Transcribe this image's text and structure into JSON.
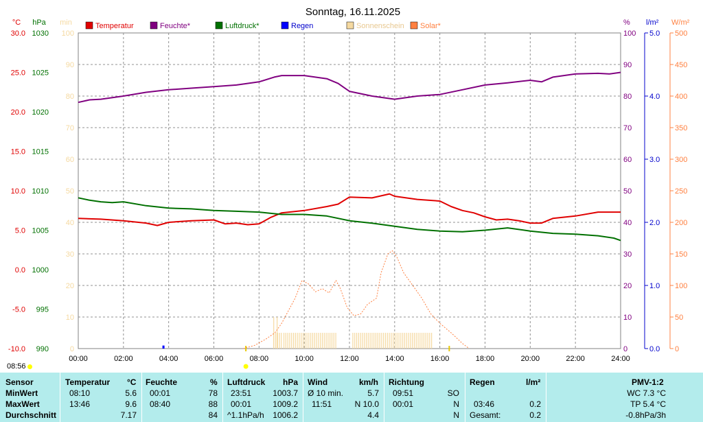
{
  "chart_data": {
    "type": "line",
    "title": "Sonntag, 16.11.2025",
    "x_range": [
      "00:00",
      "24:00"
    ],
    "x_ticks": [
      "00:00",
      "02:00",
      "04:00",
      "06:00",
      "08:00",
      "10:00",
      "12:00",
      "14:00",
      "16:00",
      "18:00",
      "20:00",
      "22:00",
      "24:00"
    ],
    "axes": {
      "temperature": {
        "unit": "°C",
        "range": [
          -10,
          30
        ],
        "ticks": [
          "30.0",
          "25.0",
          "20.0",
          "15.0",
          "10.0",
          "5.0",
          "0.0",
          "-5.0",
          "-10.0"
        ],
        "color": "#e00000"
      },
      "pressure": {
        "unit": "hPa",
        "range": [
          990,
          1030
        ],
        "ticks": [
          "1030",
          "1025",
          "1020",
          "1015",
          "1010",
          "1005",
          "1000",
          "995",
          "990"
        ],
        "color": "#007000"
      },
      "sunshine": {
        "unit": "min",
        "range": [
          0,
          100
        ],
        "ticks": [
          "100",
          "90",
          "80",
          "70",
          "60",
          "50",
          "40",
          "30",
          "20",
          "10",
          "0"
        ],
        "color": "#f5d9a0"
      },
      "humidity": {
        "unit": "%",
        "range": [
          0,
          100
        ],
        "ticks": [
          "100",
          "90",
          "80",
          "70",
          "60",
          "50",
          "40",
          "30",
          "20",
          "10",
          "0"
        ],
        "color": "#800080"
      },
      "rain": {
        "unit": "l/m²",
        "range": [
          0,
          5
        ],
        "ticks": [
          "5.0",
          "4.0",
          "3.0",
          "2.0",
          "1.0",
          "0.0"
        ],
        "color": "#0000cc"
      },
      "solar": {
        "unit": "W/m²",
        "range": [
          0,
          500
        ],
        "ticks": [
          "500",
          "450",
          "400",
          "350",
          "300",
          "250",
          "200",
          "150",
          "100",
          "50",
          "0"
        ],
        "color": "#ff8040"
      }
    },
    "legend": [
      {
        "name": "Temperatur",
        "color": "#e00000"
      },
      {
        "name": "Feuchte*",
        "color": "#800080"
      },
      {
        "name": "Luftdruck*",
        "color": "#007000"
      },
      {
        "name": "Regen",
        "color": "#0000ff"
      },
      {
        "name": "Sonnenschein",
        "color": "#f5d9a0"
      },
      {
        "name": "Solar*",
        "color": "#ff8040"
      }
    ],
    "series": [
      {
        "name": "Temperatur",
        "axis": "temperature",
        "color": "#e00000",
        "points": [
          [
            0,
            6.5
          ],
          [
            1,
            6.4
          ],
          [
            2,
            6.2
          ],
          [
            3,
            5.9
          ],
          [
            3.5,
            5.6
          ],
          [
            4,
            6.0
          ],
          [
            5,
            6.2
          ],
          [
            6,
            6.3
          ],
          [
            6.5,
            5.8
          ],
          [
            7,
            5.9
          ],
          [
            7.5,
            5.7
          ],
          [
            8,
            5.8
          ],
          [
            8.5,
            6.6
          ],
          [
            9,
            7.2
          ],
          [
            10,
            7.5
          ],
          [
            11,
            8.0
          ],
          [
            11.5,
            8.3
          ],
          [
            12,
            9.2
          ],
          [
            13,
            9.1
          ],
          [
            13.77,
            9.6
          ],
          [
            14,
            9.3
          ],
          [
            15,
            8.9
          ],
          [
            16,
            8.7
          ],
          [
            16.5,
            8.0
          ],
          [
            17,
            7.5
          ],
          [
            17.5,
            7.2
          ],
          [
            18,
            6.7
          ],
          [
            18.5,
            6.3
          ],
          [
            19,
            6.4
          ],
          [
            19.5,
            6.2
          ],
          [
            20,
            5.9
          ],
          [
            20.5,
            5.9
          ],
          [
            21,
            6.5
          ],
          [
            22,
            6.8
          ],
          [
            23,
            7.3
          ],
          [
            24,
            7.3
          ]
        ]
      },
      {
        "name": "Feuchte*",
        "axis": "humidity",
        "color": "#800080",
        "points": [
          [
            0,
            78
          ],
          [
            0.5,
            78.8
          ],
          [
            1,
            79
          ],
          [
            2,
            80
          ],
          [
            3,
            81.2
          ],
          [
            4,
            82
          ],
          [
            5,
            82.5
          ],
          [
            6,
            83
          ],
          [
            7,
            83.5
          ],
          [
            8,
            84.5
          ],
          [
            8.67,
            86
          ],
          [
            9,
            86.5
          ],
          [
            10,
            86.5
          ],
          [
            11,
            85.5
          ],
          [
            11.5,
            84
          ],
          [
            12,
            81.5
          ],
          [
            13,
            80
          ],
          [
            14,
            79
          ],
          [
            15,
            80
          ],
          [
            16,
            80.5
          ],
          [
            17,
            82
          ],
          [
            18,
            83.5
          ],
          [
            19,
            84.2
          ],
          [
            20,
            85
          ],
          [
            20.5,
            84.5
          ],
          [
            21,
            86
          ],
          [
            22,
            87
          ],
          [
            23,
            87.2
          ],
          [
            23.5,
            87
          ],
          [
            24,
            87.5
          ]
        ]
      },
      {
        "name": "Luftdruck*",
        "axis": "pressure",
        "color": "#007000",
        "points": [
          [
            0,
            1009.1
          ],
          [
            0.5,
            1008.8
          ],
          [
            1,
            1008.6
          ],
          [
            1.5,
            1008.5
          ],
          [
            2,
            1008.6
          ],
          [
            3,
            1008.1
          ],
          [
            4,
            1007.8
          ],
          [
            5,
            1007.7
          ],
          [
            6,
            1007.5
          ],
          [
            7,
            1007.4
          ],
          [
            8,
            1007.3
          ],
          [
            9,
            1007.0
          ],
          [
            10,
            1007.0
          ],
          [
            11,
            1006.8
          ],
          [
            12,
            1006.2
          ],
          [
            13,
            1005.9
          ],
          [
            14,
            1005.5
          ],
          [
            15,
            1005.1
          ],
          [
            16,
            1004.9
          ],
          [
            17,
            1004.8
          ],
          [
            18,
            1005.0
          ],
          [
            19,
            1005.3
          ],
          [
            20,
            1004.9
          ],
          [
            21,
            1004.6
          ],
          [
            22,
            1004.5
          ],
          [
            23,
            1004.3
          ],
          [
            23.7,
            1004.0
          ],
          [
            24,
            1003.7
          ]
        ]
      },
      {
        "name": "Solar*",
        "axis": "solar",
        "color": "#ff8040",
        "points": [
          [
            7.3,
            0
          ],
          [
            7.8,
            5
          ],
          [
            8.3,
            15
          ],
          [
            8.7,
            25
          ],
          [
            9,
            40
          ],
          [
            9.3,
            60
          ],
          [
            9.6,
            80
          ],
          [
            9.9,
            108
          ],
          [
            10.2,
            102
          ],
          [
            10.5,
            90
          ],
          [
            10.8,
            95
          ],
          [
            11.1,
            88
          ],
          [
            11.4,
            108
          ],
          [
            11.6,
            95
          ],
          [
            11.9,
            65
          ],
          [
            12.2,
            52
          ],
          [
            12.5,
            55
          ],
          [
            12.8,
            70
          ],
          [
            13.2,
            80
          ],
          [
            13.4,
            120
          ],
          [
            13.7,
            150
          ],
          [
            13.9,
            155
          ],
          [
            14.1,
            145
          ],
          [
            14.4,
            120
          ],
          [
            14.8,
            100
          ],
          [
            15.2,
            80
          ],
          [
            15.6,
            55
          ],
          [
            16,
            40
          ],
          [
            16.5,
            25
          ],
          [
            17,
            8
          ],
          [
            17.3,
            0
          ]
        ]
      }
    ],
    "sunshine_bars": {
      "axis": "sunshine",
      "color": "#f5d9a0",
      "intervals": [
        [
          8.65,
          9.0
        ],
        [
          9.1,
          11.45
        ],
        [
          12.15,
          15.7
        ]
      ],
      "value": 5,
      "spikes": [
        [
          8.65,
          10
        ],
        [
          8.8,
          10
        ]
      ]
    },
    "rain_bars": {
      "axis": "rain",
      "color": "#0000ff",
      "points": [
        [
          3.77,
          0.2
        ]
      ]
    },
    "sun_markers": [
      "07:25",
      "16:25"
    ]
  },
  "clock": "08:56",
  "stats": {
    "headers": {
      "sensor": "Sensor",
      "temp": "Temperatur",
      "temp_unit": "°C",
      "hum": "Feuchte",
      "hum_unit": "%",
      "press": "Luftdruck",
      "press_unit": "hPa",
      "wind": "Wind",
      "wind_unit": "km/h",
      "dir": "Richtung",
      "rain": "Regen",
      "rain_unit": "l/m²",
      "pmv": "PMV-1:2"
    },
    "rows": [
      {
        "label": "MinWert",
        "temp_time": "08:10",
        "temp_val": "5.6",
        "hum_time": "00:01",
        "hum_val": "78",
        "press_time": "23:51",
        "press_val": "1003.7",
        "wind_time": "Ø 10 min.",
        "wind_val": "5.7",
        "dir_time": "09:51",
        "dir_val": "SO",
        "rain_time": "",
        "rain_val": "",
        "pmv": "WC 7.3 °C"
      },
      {
        "label": "MaxWert",
        "temp_time": "13:46",
        "temp_val": "9.6",
        "hum_time": "08:40",
        "hum_val": "88",
        "press_time": "00:01",
        "press_val": "1009.2",
        "wind_time": "11:51",
        "wind_val": "N 10.0",
        "dir_time": "00:01",
        "dir_val": "N",
        "rain_time": "03:46",
        "rain_val": "0.2",
        "pmv": "TP 5.4 °C"
      },
      {
        "label": "Durchschnitt",
        "temp_time": "",
        "temp_val": "7.17",
        "hum_time": "",
        "hum_val": "84",
        "press_time": "^1.1hPa/h",
        "press_val": "1006.2",
        "wind_time": "",
        "wind_val": "4.4",
        "dir_time": "",
        "dir_val": "N",
        "rain_time": "Gesamt:",
        "rain_val": "0.2",
        "pmv": "-0.8hPa/3h"
      }
    ]
  }
}
